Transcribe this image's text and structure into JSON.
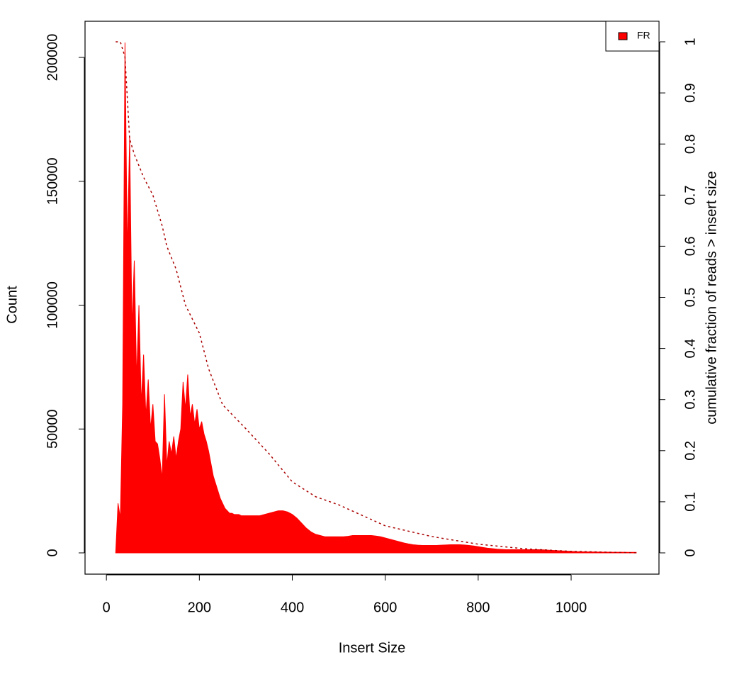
{
  "chart_data": {
    "type": "area",
    "x_label": "Insert Size",
    "y_label": "Count",
    "y2_label": "cumulative fraction of reads > insert size",
    "xlim": [
      -46,
      1189
    ],
    "xticks": [
      0,
      200,
      400,
      600,
      800,
      1000
    ],
    "ylim": [
      -8584,
      214592
    ],
    "yticks": [
      0,
      50000,
      100000,
      150000,
      200000
    ],
    "y2lim": [
      -0.0416,
      1.0402
    ],
    "y2ticks": [
      0,
      0.1,
      0.2,
      0.3,
      0.4,
      0.5,
      0.6,
      0.7,
      0.8,
      0.9,
      1
    ],
    "legend": "top-right",
    "series": [
      {
        "name": "FR",
        "color": "#ff0000",
        "x": [
          20,
          25,
          30,
          35,
          40,
          45,
          50,
          55,
          60,
          65,
          70,
          75,
          80,
          85,
          90,
          95,
          100,
          105,
          110,
          115,
          120,
          125,
          130,
          135,
          140,
          145,
          150,
          155,
          160,
          165,
          170,
          175,
          180,
          185,
          190,
          195,
          200,
          205,
          210,
          215,
          220,
          225,
          230,
          235,
          240,
          245,
          250,
          255,
          260,
          265,
          270,
          275,
          280,
          285,
          290,
          295,
          300,
          310,
          320,
          330,
          340,
          350,
          360,
          370,
          380,
          390,
          400,
          410,
          420,
          430,
          440,
          450,
          460,
          470,
          480,
          490,
          500,
          510,
          520,
          530,
          540,
          550,
          560,
          570,
          580,
          590,
          600,
          610,
          620,
          630,
          640,
          650,
          660,
          670,
          680,
          690,
          700,
          710,
          720,
          730,
          740,
          750,
          760,
          770,
          780,
          790,
          800,
          810,
          820,
          830,
          840,
          850,
          860,
          870,
          880,
          890,
          900,
          910,
          920,
          930,
          940,
          950,
          960,
          970,
          980,
          990,
          1000,
          1010,
          1020,
          1030,
          1040,
          1050,
          1060,
          1070,
          1080,
          1090,
          1100,
          1110,
          1120,
          1130,
          1140
        ],
        "values": [
          0,
          20000,
          14000,
          60000,
          206000,
          120000,
          168000,
          90000,
          118000,
          70000,
          100000,
          60000,
          80000,
          55000,
          70000,
          50000,
          60000,
          45000,
          44000,
          38000,
          30000,
          64000,
          35000,
          45000,
          40000,
          47000,
          38000,
          45000,
          50000,
          69000,
          58000,
          72000,
          55000,
          60000,
          52000,
          58000,
          50000,
          53000,
          48000,
          45000,
          41000,
          36000,
          31000,
          28000,
          25000,
          22000,
          20000,
          18000,
          17000,
          16000,
          16000,
          15500,
          15500,
          15500,
          15000,
          15000,
          15000,
          15000,
          15000,
          15000,
          15500,
          16000,
          16500,
          17000,
          17000,
          16500,
          15500,
          14000,
          12000,
          10000,
          8500,
          7500,
          7000,
          6500,
          6500,
          6500,
          6500,
          6500,
          6700,
          7000,
          7000,
          7000,
          7000,
          7000,
          6800,
          6500,
          6000,
          5500,
          5000,
          4500,
          4000,
          3600,
          3300,
          3100,
          3000,
          3000,
          3000,
          3000,
          3100,
          3200,
          3300,
          3300,
          3300,
          3200,
          3000,
          2800,
          2500,
          2200,
          1900,
          1700,
          1500,
          1400,
          1300,
          1300,
          1300,
          1300,
          1300,
          1300,
          1300,
          1300,
          1200,
          1100,
          1000,
          900,
          800,
          700,
          600,
          500,
          450,
          400,
          380,
          350,
          330,
          300,
          280,
          260,
          250,
          240,
          230,
          220,
          200
        ]
      },
      {
        "type": "line",
        "axis": "y2",
        "color": "#aa0000",
        "dashed": true,
        "x": [
          20,
          30,
          40,
          50,
          60,
          80,
          100,
          120,
          130,
          150,
          170,
          200,
          220,
          250,
          300,
          350,
          400,
          450,
          500,
          600,
          700,
          800,
          900,
          1000,
          1145
        ],
        "values": [
          1,
          1,
          0.97,
          0.81,
          0.78,
          0.735,
          0.7,
          0.64,
          0.6,
          0.555,
          0.485,
          0.43,
          0.36,
          0.29,
          0.243,
          0.194,
          0.139,
          0.11,
          0.094,
          0.053,
          0.032,
          0.017,
          0.008,
          0.003,
          0
        ]
      }
    ]
  }
}
